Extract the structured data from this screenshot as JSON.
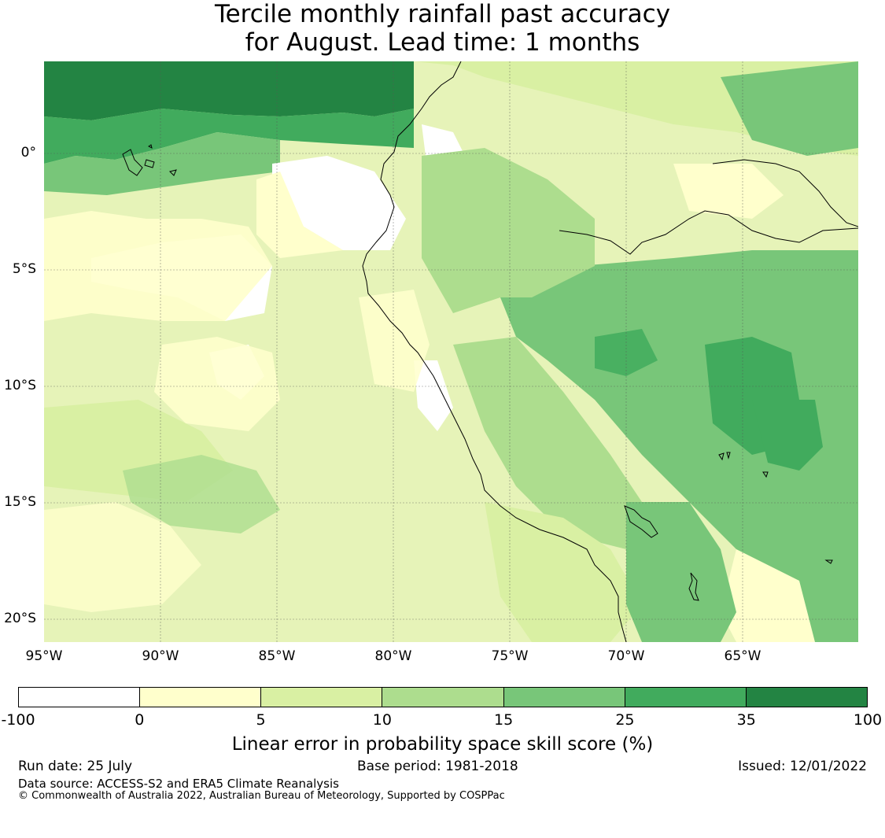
{
  "title": {
    "line1": "Tercile monthly rainfall past accuracy",
    "line2": "for August. Lead time: 1 months"
  },
  "map": {
    "lat_labels": [
      "0°",
      "5°S",
      "10°S",
      "15°S",
      "20°S"
    ],
    "lon_labels": [
      "95°W",
      "90°W",
      "85°W",
      "80°W",
      "75°W",
      "70°W",
      "65°W"
    ],
    "colors": {
      "c0": "#ffffff",
      "c1": "#ffffcc",
      "c2": "#d9f0a3",
      "c3": "#addd8e",
      "c4": "#78c679",
      "c5": "#41ab5d",
      "c6": "#238443",
      "coast": "#000000",
      "grid": "#555555"
    }
  },
  "colorbar": {
    "colors": [
      "#ffffff",
      "#ffffcc",
      "#d9f0a3",
      "#addd8e",
      "#78c679",
      "#41ab5d",
      "#238443"
    ],
    "ticks": [
      "-100",
      "0",
      "5",
      "10",
      "15",
      "25",
      "35",
      "100"
    ],
    "label": "Linear error in probability space skill score (%)"
  },
  "footer": {
    "run_date": "Run date: 25 July",
    "base_period": "Base period: 1981-2018",
    "issued": "Issued: 12/01/2022",
    "data_source": "Data source: ACCESS-S2 and ERA5 Climate Reanalysis",
    "copyright": "© Commonwealth of Australia 2022, Australian Bureau of Meteorology, Supported by COSPPac"
  }
}
